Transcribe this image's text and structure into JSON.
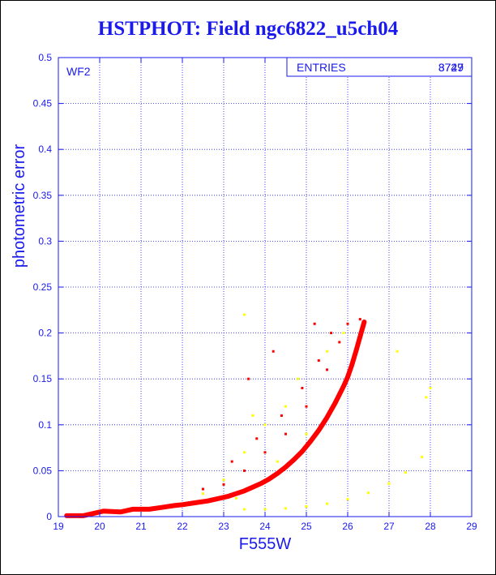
{
  "title": "HSTPHOT: Field ngc6822_u5ch04",
  "chart_data": {
    "type": "scatter",
    "title": "HSTPHOT: Field ngc6822_u5ch04",
    "xlabel": "F555W",
    "ylabel": "photometric error",
    "xlim": [
      19,
      29
    ],
    "ylim": [
      0,
      0.5
    ],
    "xticks": [
      19,
      20,
      21,
      22,
      23,
      24,
      25,
      26,
      27,
      28,
      29
    ],
    "yticks": [
      0,
      0.05,
      0.1,
      0.15,
      0.2,
      0.25,
      0.3,
      0.35,
      0.4,
      0.45,
      0.5
    ],
    "ytick_labels": [
      "0",
      "0.05",
      "0.1",
      "0.15",
      "0.2",
      "0.25",
      "0.3",
      "0.35",
      "0.4",
      "0.45",
      "0.5"
    ],
    "grid": true,
    "panel_label": "WF2",
    "stats_box": {
      "label": "ENTRIES",
      "values": [
        "8749",
        "3727"
      ]
    },
    "colors": {
      "axes": "#1a1aee",
      "series_main": "#ff0000",
      "series_secondary": "#ffff00"
    },
    "series": [
      {
        "values": [
          [
            19.2,
            0.001
          ],
          [
            19.6,
            0.001
          ],
          [
            20.1,
            0.006
          ],
          [
            20.5,
            0.005
          ],
          [
            20.8,
            0.008
          ],
          [
            21.2,
            0.008
          ],
          [
            21.5,
            0.01
          ],
          [
            21.8,
            0.012
          ],
          [
            22.0,
            0.013
          ],
          [
            22.3,
            0.015
          ],
          [
            22.6,
            0.017
          ],
          [
            22.9,
            0.02
          ],
          [
            23.1,
            0.022
          ],
          [
            23.3,
            0.025
          ],
          [
            23.5,
            0.028
          ],
          [
            23.7,
            0.032
          ],
          [
            23.9,
            0.036
          ],
          [
            24.1,
            0.041
          ],
          [
            24.3,
            0.047
          ],
          [
            24.5,
            0.054
          ],
          [
            24.7,
            0.062
          ],
          [
            24.9,
            0.071
          ],
          [
            25.1,
            0.082
          ],
          [
            25.3,
            0.094
          ],
          [
            25.5,
            0.108
          ],
          [
            25.7,
            0.124
          ],
          [
            25.9,
            0.142
          ],
          [
            26.0,
            0.152
          ],
          [
            26.1,
            0.165
          ],
          [
            26.2,
            0.18
          ],
          [
            26.3,
            0.196
          ],
          [
            26.4,
            0.212
          ],
          [
            23.0,
            0.035
          ],
          [
            23.5,
            0.05
          ],
          [
            24.0,
            0.07
          ],
          [
            24.5,
            0.09
          ],
          [
            25.0,
            0.12
          ],
          [
            25.5,
            0.16
          ],
          [
            25.8,
            0.19
          ],
          [
            26.0,
            0.21
          ],
          [
            26.3,
            0.215
          ],
          [
            23.2,
            0.06
          ],
          [
            23.8,
            0.085
          ],
          [
            24.4,
            0.11
          ],
          [
            24.9,
            0.14
          ],
          [
            25.3,
            0.17
          ],
          [
            25.6,
            0.2
          ],
          [
            25.2,
            0.21
          ],
          [
            22.5,
            0.03
          ],
          [
            24.2,
            0.18
          ],
          [
            23.6,
            0.15
          ]
        ]
      },
      {
        "values": [
          [
            23.5,
            0.008
          ],
          [
            24.0,
            0.008
          ],
          [
            24.5,
            0.009
          ],
          [
            25.0,
            0.011
          ],
          [
            25.5,
            0.014
          ],
          [
            26.0,
            0.019
          ],
          [
            26.5,
            0.026
          ],
          [
            27.0,
            0.036
          ],
          [
            27.4,
            0.048
          ],
          [
            27.8,
            0.065
          ],
          [
            27.9,
            0.13
          ],
          [
            28.0,
            0.14
          ],
          [
            23.0,
            0.04
          ],
          [
            23.5,
            0.07
          ],
          [
            24.0,
            0.1
          ],
          [
            24.5,
            0.12
          ],
          [
            23.3,
            0.02
          ],
          [
            24.8,
            0.15
          ],
          [
            25.5,
            0.18
          ],
          [
            25.9,
            0.2
          ],
          [
            22.5,
            0.025
          ],
          [
            23.7,
            0.11
          ],
          [
            24.3,
            0.06
          ],
          [
            25.0,
            0.09
          ],
          [
            23.5,
            0.22
          ],
          [
            27.2,
            0.18
          ]
        ]
      }
    ]
  }
}
